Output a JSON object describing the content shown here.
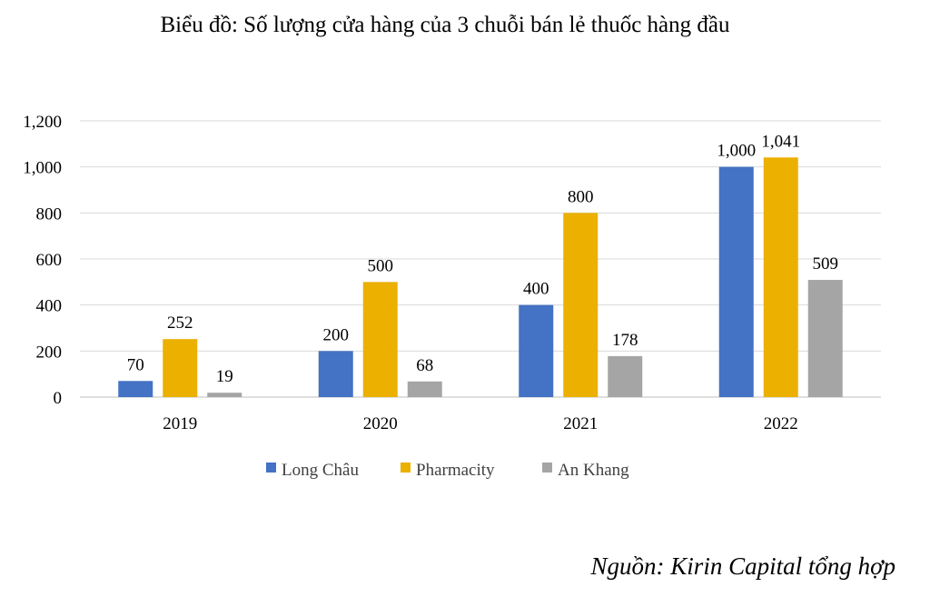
{
  "chart_data": {
    "type": "bar",
    "title": "Biểu đồ: Số lượng cửa hàng của 3 chuỗi bán lẻ thuốc hàng đầu",
    "categories": [
      "2019",
      "2020",
      "2021",
      "2022"
    ],
    "series": [
      {
        "name": "Long Châu",
        "color": "#4472C4",
        "values": [
          70,
          200,
          400,
          1000
        ],
        "labels": [
          "70",
          "200",
          "400",
          "1,000"
        ]
      },
      {
        "name": "Pharmacity",
        "color": "#EBB000",
        "values": [
          252,
          500,
          800,
          1041
        ],
        "labels": [
          "252",
          "500",
          "800",
          "1,041"
        ]
      },
      {
        "name": "An Khang",
        "color": "#A5A5A5",
        "values": [
          19,
          68,
          178,
          509
        ],
        "labels": [
          "19",
          "68",
          "178",
          "509"
        ]
      }
    ],
    "yticks": [
      "0",
      "200",
      "400",
      "600",
      "800",
      "1,000",
      "1,200"
    ],
    "ylim": [
      0,
      1200
    ],
    "grid": true,
    "legend": "bottom",
    "xlabel": "",
    "ylabel": ""
  },
  "source": "Nguồn: Kirin Capital tổng hợp"
}
